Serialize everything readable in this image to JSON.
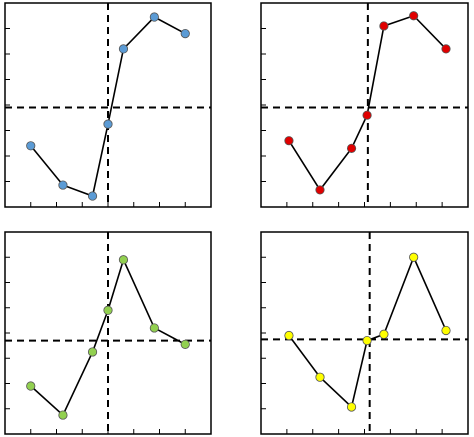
{
  "chart_data": [
    {
      "type": "line",
      "x": [
        1,
        2.25,
        3.4,
        4,
        4.6,
        5.8,
        7
      ],
      "series": [
        {
          "color": "#5b9bd5",
          "values": [
            2.4,
            0.86,
            0.43,
            3.25,
            6.2,
            7.45,
            6.8
          ]
        }
      ],
      "xlim": [
        0,
        8
      ],
      "ylim": [
        0,
        8
      ],
      "xticks": [
        1,
        2,
        3,
        4,
        5,
        6,
        7
      ],
      "yticks": [
        1,
        2,
        3,
        4,
        5,
        6,
        7
      ],
      "ref_x": 4,
      "ref_y": 3.9
    },
    {
      "type": "line",
      "x": [
        1.08,
        2.28,
        3.5,
        4.1,
        4.75,
        5.9,
        7.15
      ],
      "series": [
        {
          "color": "#e00000",
          "values": [
            2.6,
            0.67,
            2.3,
            3.6,
            7.1,
            7.5,
            6.2
          ]
        }
      ],
      "xlim": [
        0,
        8
      ],
      "ylim": [
        0,
        8
      ],
      "xticks": [
        1,
        2,
        3,
        4,
        5,
        6,
        7
      ],
      "yticks": [
        1,
        2,
        3,
        4,
        5,
        6,
        7
      ],
      "ref_x": 4.13,
      "ref_y": 3.9
    },
    {
      "type": "line",
      "x": [
        1,
        2.25,
        3.4,
        4,
        4.6,
        5.8,
        7
      ],
      "series": [
        {
          "color": "#92d050",
          "values": [
            1.9,
            0.75,
            3.25,
            4.9,
            6.9,
            4.2,
            3.55
          ]
        }
      ],
      "xlim": [
        0,
        8
      ],
      "ylim": [
        0,
        8
      ],
      "xticks": [
        1,
        2,
        3,
        4,
        5,
        6,
        7
      ],
      "yticks": [
        1,
        2,
        3,
        4,
        5,
        6,
        7
      ],
      "ref_x": 4,
      "ref_y": 3.7
    },
    {
      "type": "line",
      "x": [
        1.08,
        2.28,
        3.5,
        4.1,
        4.75,
        5.9,
        7.15
      ],
      "series": [
        {
          "color": "#ffff00",
          "values": [
            3.9,
            2.25,
            1.07,
            3.7,
            3.95,
            7,
            4.1
          ]
        }
      ],
      "xlim": [
        0,
        8
      ],
      "ylim": [
        0,
        8
      ],
      "xticks": [
        1,
        2,
        3,
        4,
        5,
        6,
        7
      ],
      "yticks": [
        1,
        2,
        3,
        4,
        5,
        6,
        7
      ],
      "ref_x": 4.2,
      "ref_y": 3.75
    }
  ]
}
